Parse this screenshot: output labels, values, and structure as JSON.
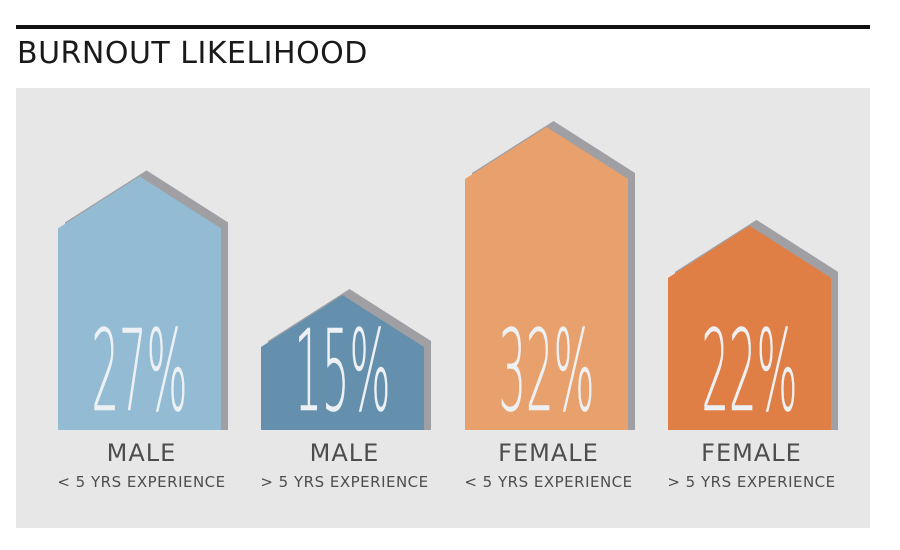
{
  "chart_data": {
    "type": "bar",
    "title": "BURNOUT LIKELIHOOD",
    "categories": [
      {
        "label": "MALE",
        "sublabel": "< 5 YRS EXPERIENCE"
      },
      {
        "label": "MALE",
        "sublabel": "> 5 YRS EXPERIENCE"
      },
      {
        "label": "FEMALE",
        "sublabel": "< 5 YRS EXPERIENCE"
      },
      {
        "label": "FEMALE",
        "sublabel": "> 5 YRS EXPERIENCE"
      }
    ],
    "values": [
      27,
      15,
      32,
      22
    ],
    "value_labels": [
      "27%",
      "15%",
      "32%",
      "22%"
    ],
    "colors": [
      "#93bcd4",
      "#6590ad",
      "#e8a06c",
      "#e07f45"
    ],
    "shadow_color": "#a0a0a4",
    "ylim": [
      0,
      32
    ],
    "grid": false,
    "legend": "none"
  }
}
